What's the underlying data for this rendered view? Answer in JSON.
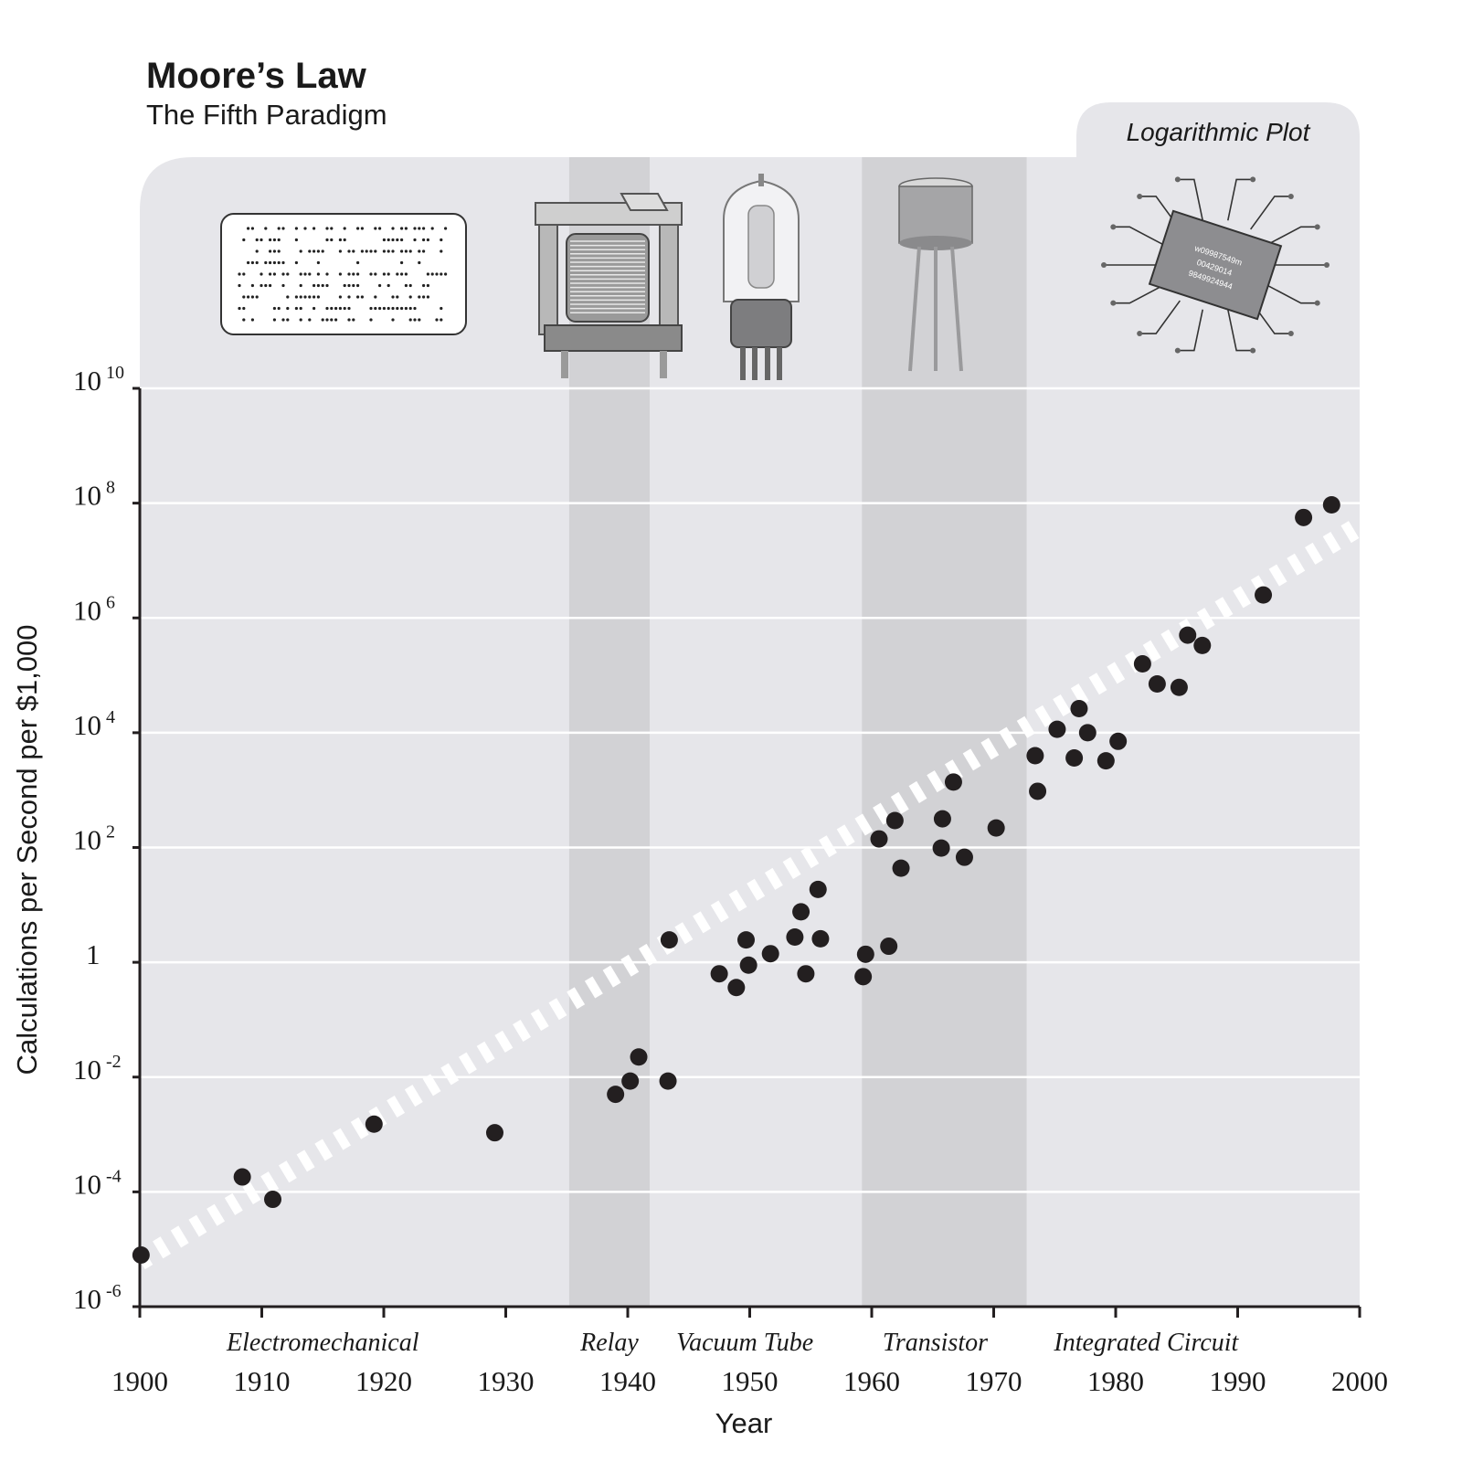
{
  "title": "Moore’s Law",
  "subtitle": "The Fifth Paradigm",
  "plot_note": "Logarithmic Plot",
  "colors": {
    "panel": "#e6e6ea",
    "era_band": "#d2d2d5",
    "points": "#231f20",
    "trend": "#ffffff",
    "axis": "#231f20"
  },
  "icons": {
    "electromechanical": "punch-card-icon",
    "relay": "relay-icon",
    "vacuum_tube": "vacuum-tube-icon",
    "transistor": "transistor-icon",
    "integrated_circuit": "integrated-circuit-icon"
  },
  "chip_text": [
    "w09987549m",
    "00429014",
    "9849924944"
  ],
  "chart_data": {
    "type": "scatter",
    "x_axis": {
      "label": "Year",
      "min": 1900,
      "max": 2000,
      "ticks": [
        1900,
        1910,
        1920,
        1930,
        1940,
        1950,
        1960,
        1970,
        1980,
        1990,
        2000
      ]
    },
    "y_axis": {
      "label": "Calculations per Second per $1,000",
      "scale": "log10",
      "min_exponent": -6,
      "max_exponent": 10,
      "ticks": [
        {
          "base": "10",
          "exp": "10",
          "value": 10
        },
        {
          "base": "10",
          "exp": "8",
          "value": 8
        },
        {
          "base": "10",
          "exp": "6",
          "value": 6
        },
        {
          "base": "10",
          "exp": "4",
          "value": 4
        },
        {
          "base": "10",
          "exp": "2",
          "value": 2
        },
        {
          "base": "1",
          "exp": "",
          "value": 0
        },
        {
          "base": "10",
          "exp": "-2",
          "value": -2
        },
        {
          "base": "10",
          "exp": "-4",
          "value": -4
        },
        {
          "base": "10",
          "exp": "-6",
          "value": -6
        }
      ]
    },
    "grid": true,
    "eras": [
      {
        "label": "Electromechanical",
        "label_year": 1915,
        "band": null
      },
      {
        "label": "Relay",
        "label_year": 1938.5,
        "band": [
          1935.2,
          1941.8
        ]
      },
      {
        "label": "Vacuum Tube",
        "label_year": 1949.6,
        "band": null
      },
      {
        "label": "Transistor",
        "label_year": 1965.2,
        "band": [
          1959.2,
          1972.7
        ]
      },
      {
        "label": "Integrated Circuit",
        "label_year": 1982.5,
        "band": null
      }
    ],
    "trend": {
      "style": "dashed",
      "from": [
        1900,
        -5.2
      ],
      "to": [
        2000,
        7.6
      ]
    },
    "points": [
      {
        "year": 1900.1,
        "log10_value": -5.1
      },
      {
        "year": 1908.4,
        "log10_value": -3.74
      },
      {
        "year": 1910.9,
        "log10_value": -4.13
      },
      {
        "year": 1919.2,
        "log10_value": -2.82
      },
      {
        "year": 1929.1,
        "log10_value": -2.97
      },
      {
        "year": 1939.0,
        "log10_value": -2.3
      },
      {
        "year": 1940.2,
        "log10_value": -2.07
      },
      {
        "year": 1940.9,
        "log10_value": -1.65
      },
      {
        "year": 1943.3,
        "log10_value": -2.07
      },
      {
        "year": 1943.4,
        "log10_value": 0.39
      },
      {
        "year": 1947.5,
        "log10_value": -0.2
      },
      {
        "year": 1948.9,
        "log10_value": -0.44
      },
      {
        "year": 1949.7,
        "log10_value": 0.39
      },
      {
        "year": 1949.9,
        "log10_value": -0.05
      },
      {
        "year": 1951.7,
        "log10_value": 0.15
      },
      {
        "year": 1953.7,
        "log10_value": 0.44
      },
      {
        "year": 1954.2,
        "log10_value": 0.88
      },
      {
        "year": 1954.6,
        "log10_value": -0.2
      },
      {
        "year": 1955.6,
        "log10_value": 1.27
      },
      {
        "year": 1955.8,
        "log10_value": 0.41
      },
      {
        "year": 1959.3,
        "log10_value": -0.25
      },
      {
        "year": 1959.5,
        "log10_value": 0.14
      },
      {
        "year": 1960.6,
        "log10_value": 2.15
      },
      {
        "year": 1961.4,
        "log10_value": 0.28
      },
      {
        "year": 1961.9,
        "log10_value": 2.47
      },
      {
        "year": 1962.4,
        "log10_value": 1.64
      },
      {
        "year": 1965.7,
        "log10_value": 1.99
      },
      {
        "year": 1965.8,
        "log10_value": 2.5
      },
      {
        "year": 1966.7,
        "log10_value": 3.14
      },
      {
        "year": 1967.6,
        "log10_value": 1.83
      },
      {
        "year": 1970.2,
        "log10_value": 2.34
      },
      {
        "year": 1973.4,
        "log10_value": 3.6
      },
      {
        "year": 1973.6,
        "log10_value": 2.98
      },
      {
        "year": 1975.2,
        "log10_value": 4.06
      },
      {
        "year": 1976.6,
        "log10_value": 3.56
      },
      {
        "year": 1977.0,
        "log10_value": 4.42
      },
      {
        "year": 1977.7,
        "log10_value": 4.0
      },
      {
        "year": 1979.2,
        "log10_value": 3.51
      },
      {
        "year": 1980.2,
        "log10_value": 3.85
      },
      {
        "year": 1982.2,
        "log10_value": 5.2
      },
      {
        "year": 1983.4,
        "log10_value": 4.85
      },
      {
        "year": 1985.2,
        "log10_value": 4.79
      },
      {
        "year": 1985.9,
        "log10_value": 5.7
      },
      {
        "year": 1987.1,
        "log10_value": 5.52
      },
      {
        "year": 1992.1,
        "log10_value": 6.4
      },
      {
        "year": 1995.4,
        "log10_value": 7.75
      },
      {
        "year": 1997.7,
        "log10_value": 7.97
      }
    ]
  }
}
